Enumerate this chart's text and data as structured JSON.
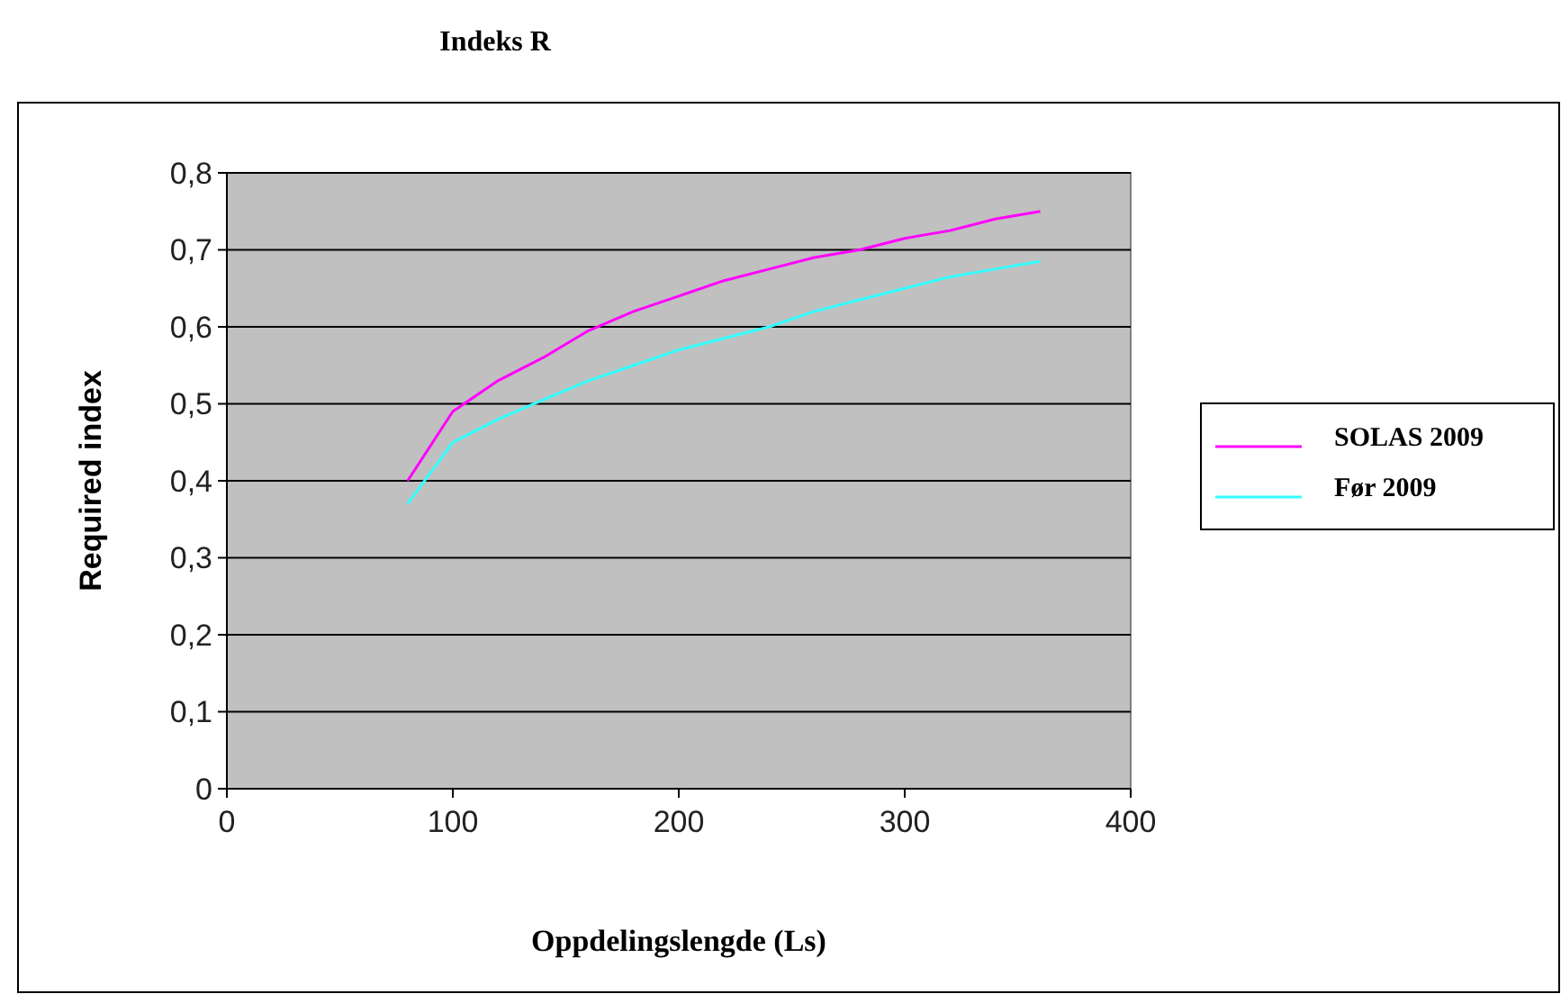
{
  "chart_data": {
    "type": "line",
    "title": "Indeks R",
    "xlabel": "Oppdelingslengde (Ls)",
    "ylabel": "Required index",
    "x": [
      80,
      100,
      120,
      140,
      160,
      180,
      200,
      220,
      240,
      260,
      280,
      300,
      320,
      340,
      360
    ],
    "series": [
      {
        "name": "SOLAS 2009",
        "color": "#ff00ff",
        "values": [
          0.4,
          0.49,
          0.53,
          0.56,
          0.595,
          0.62,
          0.64,
          0.66,
          0.675,
          0.69,
          0.7,
          0.715,
          0.725,
          0.74,
          0.75
        ]
      },
      {
        "name": "Før 2009",
        "color": "#33ffff",
        "values": [
          0.37,
          0.45,
          0.48,
          0.505,
          0.53,
          0.55,
          0.57,
          0.585,
          0.6,
          0.62,
          0.635,
          0.65,
          0.665,
          0.675,
          0.685
        ]
      }
    ],
    "xlim": [
      0,
      400
    ],
    "xticks": [
      0,
      100,
      200,
      300,
      400
    ],
    "ylim": [
      0,
      0.8
    ],
    "yticks": [
      {
        "value": 0,
        "label": "0"
      },
      {
        "value": 0.1,
        "label": "0,1"
      },
      {
        "value": 0.2,
        "label": "0,2"
      },
      {
        "value": 0.3,
        "label": "0,3"
      },
      {
        "value": 0.4,
        "label": "0,4"
      },
      {
        "value": 0.5,
        "label": "0,5"
      },
      {
        "value": 0.6,
        "label": "0,6"
      },
      {
        "value": 0.7,
        "label": "0,7"
      },
      {
        "value": 0.8,
        "label": "0,8"
      }
    ],
    "grid": "y",
    "legend": "right",
    "marker": "none",
    "line_style": "solid"
  }
}
